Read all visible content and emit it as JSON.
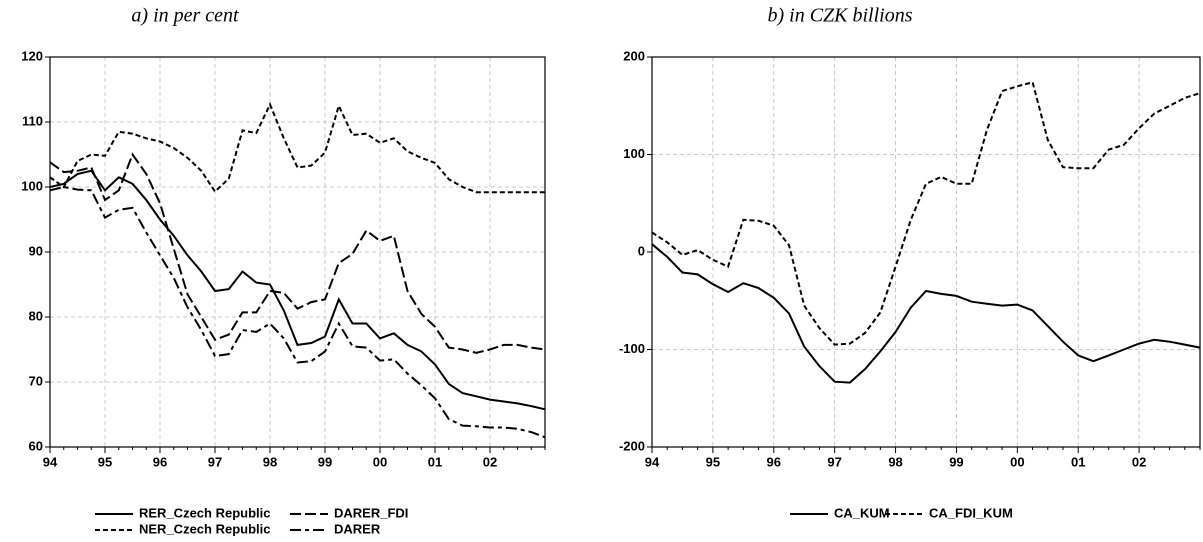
{
  "chart_data": [
    {
      "type": "line",
      "title": "a) in per cent",
      "grid": true,
      "legend": "bottom",
      "categories": [
        "94",
        null,
        null,
        null,
        "95",
        null,
        null,
        null,
        "96",
        null,
        null,
        null,
        "97",
        null,
        null,
        null,
        "98",
        null,
        null,
        null,
        "99",
        null,
        null,
        null,
        "00",
        null,
        null,
        null,
        "01",
        null,
        null,
        null,
        "02",
        null,
        null,
        null,
        null
      ],
      "ylim": [
        60,
        120
      ],
      "yticks": [
        60,
        70,
        80,
        90,
        100,
        110,
        120
      ],
      "series": [
        {
          "name": "RER_Czech Republic",
          "color": "#000000",
          "dash": "solid",
          "values": [
            100,
            100.5,
            102,
            102.5,
            99.5,
            101.5,
            100.5,
            98,
            95,
            92.5,
            89.5,
            87,
            84,
            84.3,
            87,
            85.3,
            85,
            81,
            75.7,
            76,
            77,
            82.7,
            79,
            79,
            76.7,
            77.5,
            75.7,
            74.7,
            72.7,
            69.7,
            68.3,
            67.8,
            67.3,
            67,
            66.7,
            66.3,
            65.8
          ]
        },
        {
          "name": "DARER_FDI",
          "color": "#000000",
          "dash": "long-dash",
          "values": [
            103.8,
            102.3,
            102.5,
            103,
            98,
            99.5,
            105,
            102,
            97.5,
            90.5,
            83.5,
            80,
            76.5,
            77.3,
            80.7,
            80.7,
            84,
            83.7,
            81.3,
            82.3,
            82.7,
            88.3,
            89.7,
            93.3,
            91.7,
            92.5,
            84,
            80.5,
            78.5,
            75.3,
            75,
            74.5,
            75,
            75.7,
            75.7,
            75.3,
            75
          ]
        },
        {
          "name": "NER_Czech Republic",
          "color": "#000000",
          "dash": "short-dash",
          "values": [
            101.5,
            100,
            104,
            105,
            104.8,
            108.5,
            108.2,
            107.5,
            107,
            106,
            104.5,
            102.5,
            99.3,
            101.3,
            108.7,
            108.3,
            112.7,
            107.5,
            103,
            103.3,
            105.3,
            112.5,
            108,
            108.2,
            106.8,
            107.5,
            105.5,
            104.5,
            103.7,
            101.2,
            100,
            99.2,
            99.2,
            99.2,
            99.2,
            99.2,
            99.2
          ]
        },
        {
          "name": "DARER",
          "color": "#000000",
          "dash": "dash-dot",
          "values": [
            99.5,
            100,
            99.6,
            99.5,
            95.3,
            96.5,
            96.8,
            93,
            89.5,
            86,
            81.5,
            78,
            74,
            74.3,
            78,
            77.7,
            79,
            76.7,
            73,
            73.2,
            74.7,
            79,
            75.5,
            75.3,
            73.3,
            73.5,
            71.3,
            69.5,
            67.5,
            64.3,
            63.3,
            63.2,
            63,
            63,
            62.8,
            62.3,
            61.5
          ]
        }
      ]
    },
    {
      "type": "line",
      "title": "b) in CZK billions",
      "grid": true,
      "legend": "bottom",
      "categories": [
        "94",
        null,
        null,
        null,
        "95",
        null,
        null,
        null,
        "96",
        null,
        null,
        null,
        "97",
        null,
        null,
        null,
        "98",
        null,
        null,
        null,
        "99",
        null,
        null,
        null,
        "00",
        null,
        null,
        null,
        "01",
        null,
        null,
        null,
        "02",
        null,
        null,
        null,
        null
      ],
      "ylim": [
        -200,
        200
      ],
      "yticks": [
        -200,
        -100,
        0,
        100,
        200
      ],
      "series": [
        {
          "name": "CA_KUM",
          "color": "#000000",
          "dash": "solid",
          "values": [
            8,
            -5,
            -21,
            -23,
            -33,
            -41,
            -32,
            -37,
            -47,
            -63,
            -97,
            -117,
            -133,
            -134,
            -120,
            -102,
            -82,
            -57,
            -40,
            -43,
            -45,
            -51,
            -53,
            -55,
            -54,
            -60,
            -76,
            -92,
            -106,
            -112,
            -106,
            -100,
            -94,
            -90,
            -92,
            -95,
            -98
          ]
        },
        {
          "name": "CA_FDI_KUM",
          "color": "#000000",
          "dash": "short-dash",
          "values": [
            20,
            10,
            -3,
            2,
            -8,
            -15,
            33,
            32,
            27,
            7,
            -55,
            -78,
            -95,
            -94,
            -83,
            -62,
            -15,
            33,
            70,
            77,
            70,
            70,
            125,
            165,
            170,
            174,
            115,
            87,
            86,
            86,
            105,
            110,
            127,
            142,
            150,
            158,
            163
          ]
        }
      ]
    }
  ]
}
